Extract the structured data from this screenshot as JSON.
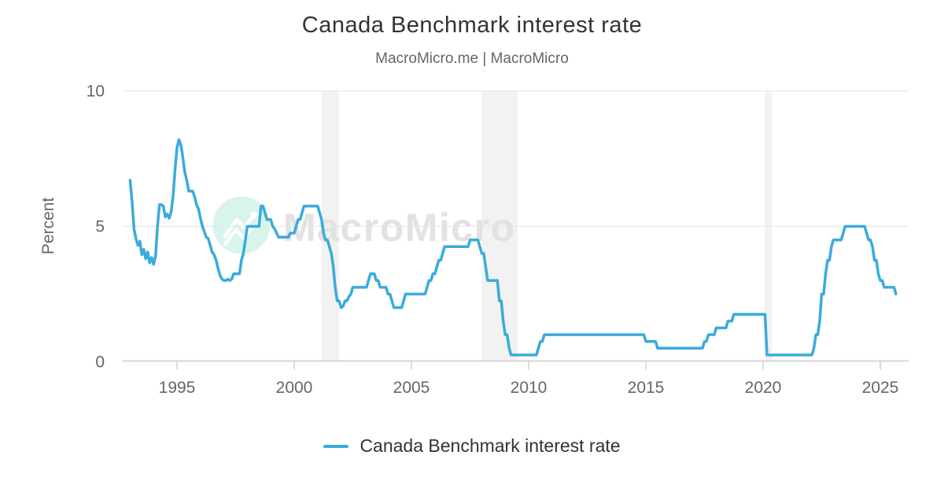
{
  "title": "Canada Benchmark interest rate",
  "subtitle": "MacroMicro.me | MacroMicro",
  "legend": {
    "label": "Canada Benchmark interest rate"
  },
  "watermark": {
    "text": "MacroMicro",
    "text_color": "#e2e2e2",
    "circle_color": "#d9f4ec",
    "logo_color": "#ffffff"
  },
  "chart_data": {
    "type": "line",
    "title": "Canada Benchmark interest rate",
    "xlabel": "",
    "ylabel": "Percent",
    "ylim": [
      0,
      10
    ],
    "yticks": [
      0,
      5,
      10
    ],
    "xticks": [
      1995,
      2000,
      2005,
      2010,
      2015,
      2020,
      2025
    ],
    "xlim": [
      1992.68,
      2026.2
    ],
    "grid": "horizontal",
    "legend_position": "bottom",
    "line_color": "#3aabdb",
    "grid_color": "#e6e6e6",
    "axis_line_color": "#d5d5d5",
    "tick_color": "#d0d0d0",
    "tick_label_color": "#666666",
    "recession_band_color": "#f2f2f2",
    "recession_bands": [
      [
        2001.17,
        2001.91
      ],
      [
        2008.0,
        2009.53
      ],
      [
        2020.07,
        2020.37
      ]
    ],
    "series": [
      {
        "name": "Canada Benchmark interest rate",
        "start_year": 1993,
        "interval_months": 1,
        "values": [
          6.7,
          5.9,
          4.9,
          4.55,
          4.3,
          4.45,
          3.95,
          4.15,
          3.8,
          4.05,
          3.65,
          3.85,
          3.6,
          3.9,
          5.0,
          5.8,
          5.8,
          5.75,
          5.35,
          5.45,
          5.3,
          5.55,
          6.1,
          7.1,
          7.9,
          8.2,
          8.0,
          7.55,
          7.0,
          6.7,
          6.3,
          6.3,
          6.3,
          6.1,
          5.8,
          5.65,
          5.3,
          5.0,
          4.8,
          4.6,
          4.55,
          4.3,
          4.05,
          3.95,
          3.75,
          3.45,
          3.2,
          3.05,
          3.0,
          3.0,
          3.05,
          3.0,
          3.05,
          3.25,
          3.25,
          3.25,
          3.25,
          3.75,
          4.0,
          4.5,
          5.0,
          5.0,
          5.0,
          5.0,
          5.0,
          5.0,
          5.0,
          5.75,
          5.75,
          5.5,
          5.25,
          5.25,
          5.25,
          5.0,
          4.9,
          4.75,
          4.6,
          4.6,
          4.6,
          4.6,
          4.6,
          4.6,
          4.75,
          4.75,
          4.75,
          5.0,
          5.25,
          5.25,
          5.5,
          5.75,
          5.75,
          5.75,
          5.75,
          5.75,
          5.75,
          5.75,
          5.75,
          5.5,
          5.25,
          4.75,
          4.5,
          4.5,
          4.25,
          4.0,
          3.5,
          2.75,
          2.25,
          2.25,
          2.0,
          2.05,
          2.25,
          2.25,
          2.4,
          2.5,
          2.75,
          2.75,
          2.75,
          2.75,
          2.75,
          2.75,
          2.75,
          2.75,
          3.0,
          3.25,
          3.25,
          3.25,
          3.0,
          3.0,
          2.75,
          2.75,
          2.75,
          2.75,
          2.5,
          2.5,
          2.25,
          2.0,
          2.0,
          2.0,
          2.0,
          2.0,
          2.25,
          2.5,
          2.5,
          2.5,
          2.5,
          2.5,
          2.5,
          2.5,
          2.5,
          2.5,
          2.5,
          2.5,
          2.75,
          3.0,
          3.0,
          3.25,
          3.25,
          3.5,
          3.75,
          3.75,
          4.0,
          4.25,
          4.25,
          4.25,
          4.25,
          4.25,
          4.25,
          4.25,
          4.25,
          4.25,
          4.25,
          4.25,
          4.25,
          4.25,
          4.5,
          4.5,
          4.5,
          4.5,
          4.5,
          4.25,
          4.0,
          4.0,
          3.5,
          3.0,
          3.0,
          3.0,
          3.0,
          3.0,
          3.0,
          2.25,
          2.25,
          1.5,
          1.0,
          1.0,
          0.5,
          0.25,
          0.25,
          0.25,
          0.25,
          0.25,
          0.25,
          0.25,
          0.25,
          0.25,
          0.25,
          0.25,
          0.25,
          0.25,
          0.25,
          0.5,
          0.75,
          0.75,
          1.0,
          1.0,
          1.0,
          1.0,
          1.0,
          1.0,
          1.0,
          1.0,
          1.0,
          1.0,
          1.0,
          1.0,
          1.0,
          1.0,
          1.0,
          1.0,
          1.0,
          1.0,
          1.0,
          1.0,
          1.0,
          1.0,
          1.0,
          1.0,
          1.0,
          1.0,
          1.0,
          1.0,
          1.0,
          1.0,
          1.0,
          1.0,
          1.0,
          1.0,
          1.0,
          1.0,
          1.0,
          1.0,
          1.0,
          1.0,
          1.0,
          1.0,
          1.0,
          1.0,
          1.0,
          1.0,
          1.0,
          1.0,
          1.0,
          1.0,
          1.0,
          1.0,
          0.75,
          0.75,
          0.75,
          0.75,
          0.75,
          0.75,
          0.5,
          0.5,
          0.5,
          0.5,
          0.5,
          0.5,
          0.5,
          0.5,
          0.5,
          0.5,
          0.5,
          0.5,
          0.5,
          0.5,
          0.5,
          0.5,
          0.5,
          0.5,
          0.5,
          0.5,
          0.5,
          0.5,
          0.5,
          0.5,
          0.75,
          0.75,
          1.0,
          1.0,
          1.0,
          1.0,
          1.25,
          1.25,
          1.25,
          1.25,
          1.25,
          1.25,
          1.5,
          1.5,
          1.5,
          1.75,
          1.75,
          1.75,
          1.75,
          1.75,
          1.75,
          1.75,
          1.75,
          1.75,
          1.75,
          1.75,
          1.75,
          1.75,
          1.75,
          1.75,
          1.75,
          1.75,
          0.25,
          0.25,
          0.25,
          0.25,
          0.25,
          0.25,
          0.25,
          0.25,
          0.25,
          0.25,
          0.25,
          0.25,
          0.25,
          0.25,
          0.25,
          0.25,
          0.25,
          0.25,
          0.25,
          0.25,
          0.25,
          0.25,
          0.25,
          0.25,
          0.5,
          1.0,
          1.0,
          1.5,
          2.5,
          2.5,
          3.25,
          3.75,
          3.75,
          4.25,
          4.5,
          4.5,
          4.5,
          4.5,
          4.5,
          4.75,
          5.0,
          5.0,
          5.0,
          5.0,
          5.0,
          5.0,
          5.0,
          5.0,
          5.0,
          5.0,
          5.0,
          4.75,
          4.5,
          4.5,
          4.25,
          3.75,
          3.75,
          3.25,
          3.0,
          3.0,
          2.75,
          2.75,
          2.75,
          2.75,
          2.75,
          2.75,
          2.5
        ]
      }
    ]
  }
}
